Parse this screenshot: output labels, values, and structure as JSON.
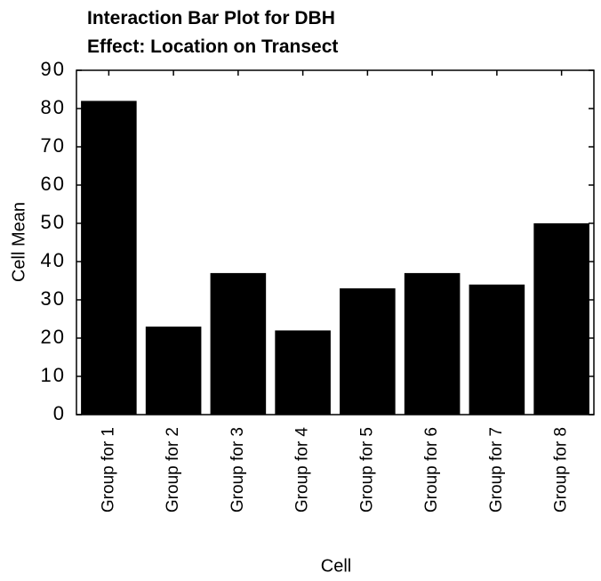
{
  "chart_data": {
    "type": "bar",
    "title": "Interaction Bar Plot for DBH",
    "subtitle": "Effect: Location on Transect",
    "x_label": "Cell",
    "y_label": "Cell Mean",
    "categories": [
      "Group for 1",
      "Group for 2",
      "Group for 3",
      "Group for 4",
      "Group for 5",
      "Group for 6",
      "Group for 7",
      "Group for 8"
    ],
    "values": [
      82,
      23,
      37,
      22,
      33,
      37,
      34,
      50
    ],
    "color": "#000000",
    "ylim": [
      0,
      90
    ],
    "yticks": [
      0,
      10,
      20,
      30,
      40,
      50,
      60,
      70,
      80,
      90
    ],
    "grid": false
  }
}
